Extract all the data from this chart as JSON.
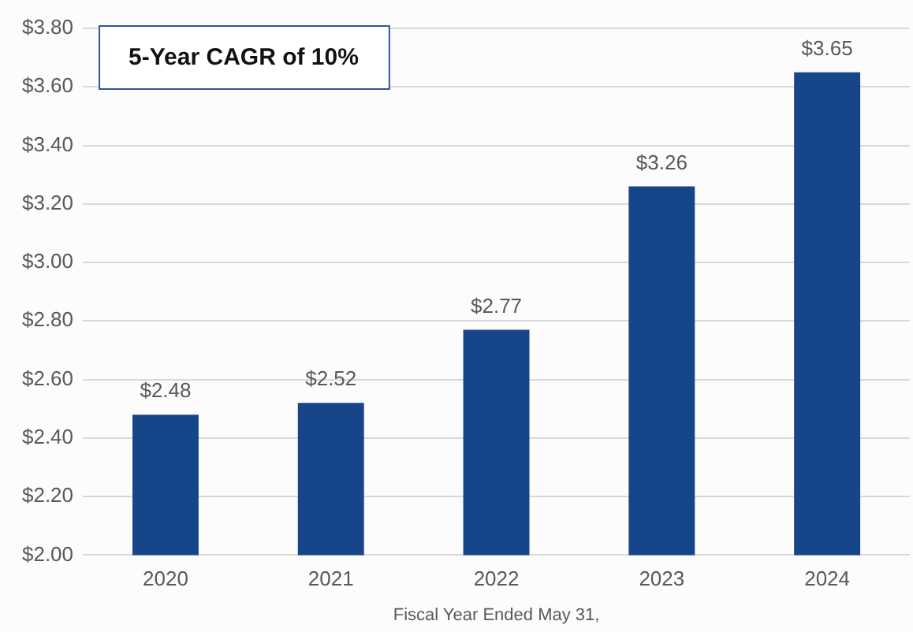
{
  "chart_data": {
    "type": "bar",
    "xlabel": "Fiscal Year Ended May 31,",
    "categories": [
      "2020",
      "2021",
      "2022",
      "2023",
      "2024"
    ],
    "values": [
      2.48,
      2.52,
      2.77,
      3.26,
      3.65
    ],
    "value_labels": [
      "$2.48",
      "$2.52",
      "$2.77",
      "$3.26",
      "$3.65"
    ],
    "color": "#17458a",
    "ylim": [
      2.0,
      3.8
    ],
    "yticks": [
      {
        "value": 2.0,
        "label": "$2.00"
      },
      {
        "value": 2.2,
        "label": "$2.20"
      },
      {
        "value": 2.4,
        "label": "$2.40"
      },
      {
        "value": 2.6,
        "label": "$2.60"
      },
      {
        "value": 2.8,
        "label": "$2.80"
      },
      {
        "value": 3.0,
        "label": "$3.00"
      },
      {
        "value": 3.2,
        "label": "$3.20"
      },
      {
        "value": 3.4,
        "label": "$3.40"
      },
      {
        "value": 3.6,
        "label": "$3.60"
      },
      {
        "value": 3.8,
        "label": "$3.80"
      }
    ],
    "grid": "y",
    "annotations": [
      "5-Year CAGR of 10%"
    ]
  }
}
